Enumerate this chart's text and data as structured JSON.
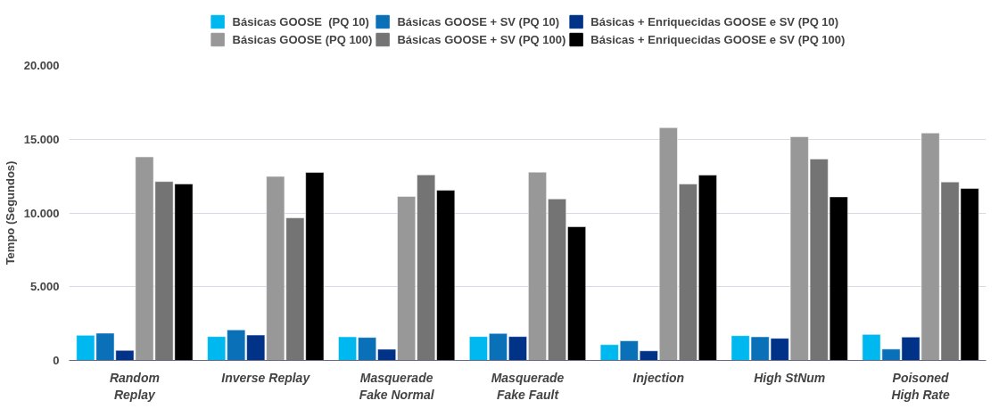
{
  "chart_data": {
    "type": "bar",
    "ylabel": "Tempo (Segundos)",
    "categories": [
      "Random\nReplay",
      "Inverse Replay",
      "Masquerade\nFake Normal",
      "Masquerade\nFake Fault",
      "Injection",
      "High StNum",
      "Poisoned\nHigh Rate"
    ],
    "series": [
      {
        "name": "Básicas GOOSE  (PQ 10)",
        "color": "#00b8f0",
        "values": [
          1700,
          1620,
          1600,
          1620,
          1070,
          1680,
          1760
        ]
      },
      {
        "name": "Básicas GOOSE + SV (PQ 10)",
        "color": "#0a70b8",
        "values": [
          1850,
          2070,
          1560,
          1830,
          1330,
          1600,
          770
        ]
      },
      {
        "name": "Básicas + Enriquecidas GOOSE e SV (PQ 10)",
        "color": "#003388",
        "values": [
          680,
          1720,
          760,
          1620,
          650,
          1500,
          1580
        ]
      },
      {
        "name": "Básicas GOOSE (PQ 100)",
        "color": "#989898",
        "values": [
          13800,
          12480,
          11120,
          12770,
          15780,
          15170,
          15420
        ]
      },
      {
        "name": "Básicas GOOSE + SV (PQ 100)",
        "color": "#747474",
        "values": [
          12130,
          9670,
          12580,
          10950,
          11960,
          13660,
          12100
        ]
      },
      {
        "name": "Básicas + Enriquecidas GOOSE e SV (PQ 100)",
        "color": "#000000",
        "values": [
          11970,
          12750,
          11540,
          9070,
          12570,
          11090,
          11660
        ]
      }
    ],
    "ylim": [
      0,
      20000
    ],
    "yticks": [
      {
        "value": 0,
        "label": "0"
      },
      {
        "value": 5000,
        "label": "5.000"
      },
      {
        "value": 10000,
        "label": "10.000"
      },
      {
        "value": 15000,
        "label": "15.000"
      },
      {
        "value": 20000,
        "label": "20.000"
      }
    ],
    "grid": "y",
    "legend": "top"
  }
}
